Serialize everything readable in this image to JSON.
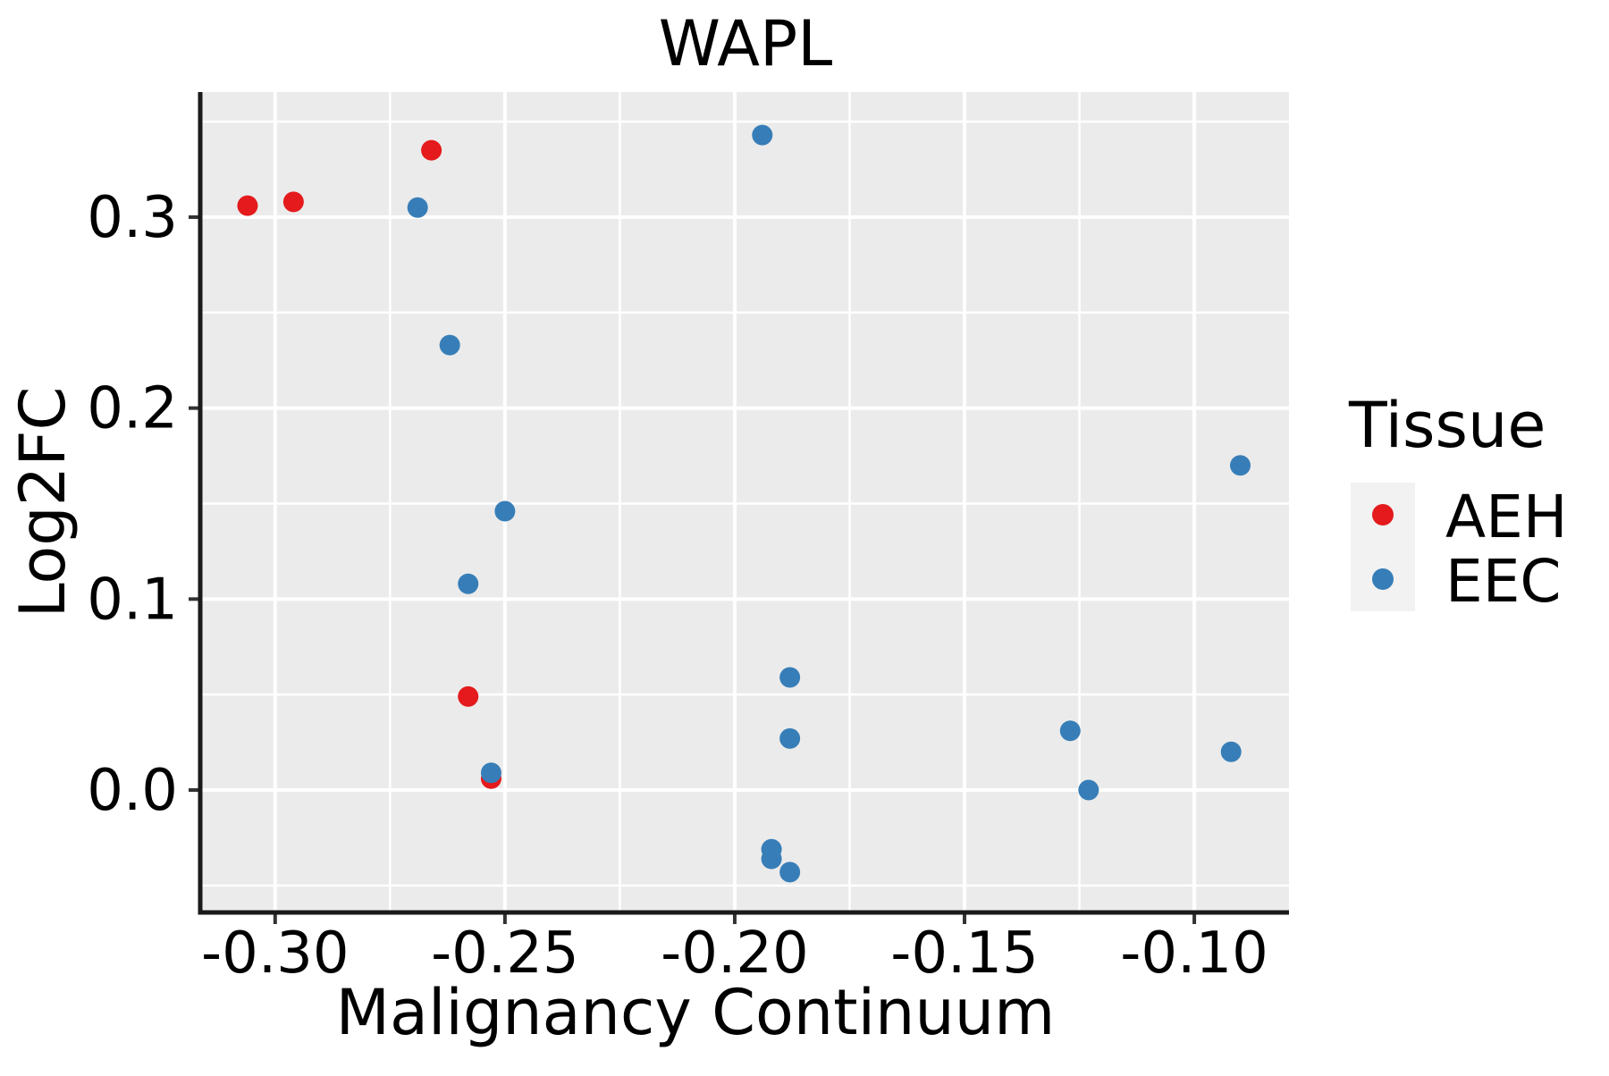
{
  "chart_data": {
    "type": "scatter",
    "title": "WAPL",
    "xlabel": "Malignancy Continuum",
    "ylabel": "Log2FC",
    "xlim": [
      -0.3163,
      -0.0794
    ],
    "ylim": [
      -0.0641,
      0.3655
    ],
    "x_ticks": {
      "values": [
        -0.3,
        -0.25,
        -0.2,
        -0.15,
        -0.1
      ],
      "labels": [
        "-0.30",
        "-0.25",
        "-0.20",
        "-0.15",
        "-0.10"
      ]
    },
    "y_ticks": {
      "values": [
        0.0,
        0.1,
        0.2,
        0.3
      ],
      "labels": [
        "0.0",
        "0.1",
        "0.2",
        "0.3"
      ]
    },
    "x_minor_ticks": [
      -0.275,
      -0.225,
      -0.175,
      -0.125
    ],
    "y_minor_ticks": [
      -0.05,
      0.05,
      0.15,
      0.25,
      0.35
    ],
    "grid": true,
    "panel_background": "#EBEBEB",
    "gridline_color": "#FFFFFF",
    "axis_line_color": "#1a1a1a",
    "tick_mark_color": "#333333",
    "point_radius": 11.5,
    "legend": {
      "title": "Tissue",
      "position": "right",
      "key_background": "#F2F2F2"
    },
    "series": [
      {
        "name": "AEH",
        "color": "#E41A1C",
        "points": [
          [
            -0.306,
            0.306
          ],
          [
            -0.296,
            0.308
          ],
          [
            -0.266,
            0.335
          ],
          [
            -0.258,
            0.049
          ],
          [
            -0.253,
            0.006
          ]
        ]
      },
      {
        "name": "EEC",
        "color": "#377EB8",
        "points": [
          [
            -0.269,
            0.305
          ],
          [
            -0.262,
            0.233
          ],
          [
            -0.25,
            0.146
          ],
          [
            -0.258,
            0.108
          ],
          [
            -0.253,
            0.009
          ],
          [
            -0.194,
            0.343
          ],
          [
            -0.192,
            -0.031
          ],
          [
            -0.192,
            -0.036
          ],
          [
            -0.188,
            -0.043
          ],
          [
            -0.188,
            0.059
          ],
          [
            -0.188,
            0.027
          ],
          [
            -0.127,
            0.031
          ],
          [
            -0.123,
            0.0
          ],
          [
            -0.092,
            0.02
          ],
          [
            -0.09,
            0.17
          ]
        ]
      }
    ]
  }
}
